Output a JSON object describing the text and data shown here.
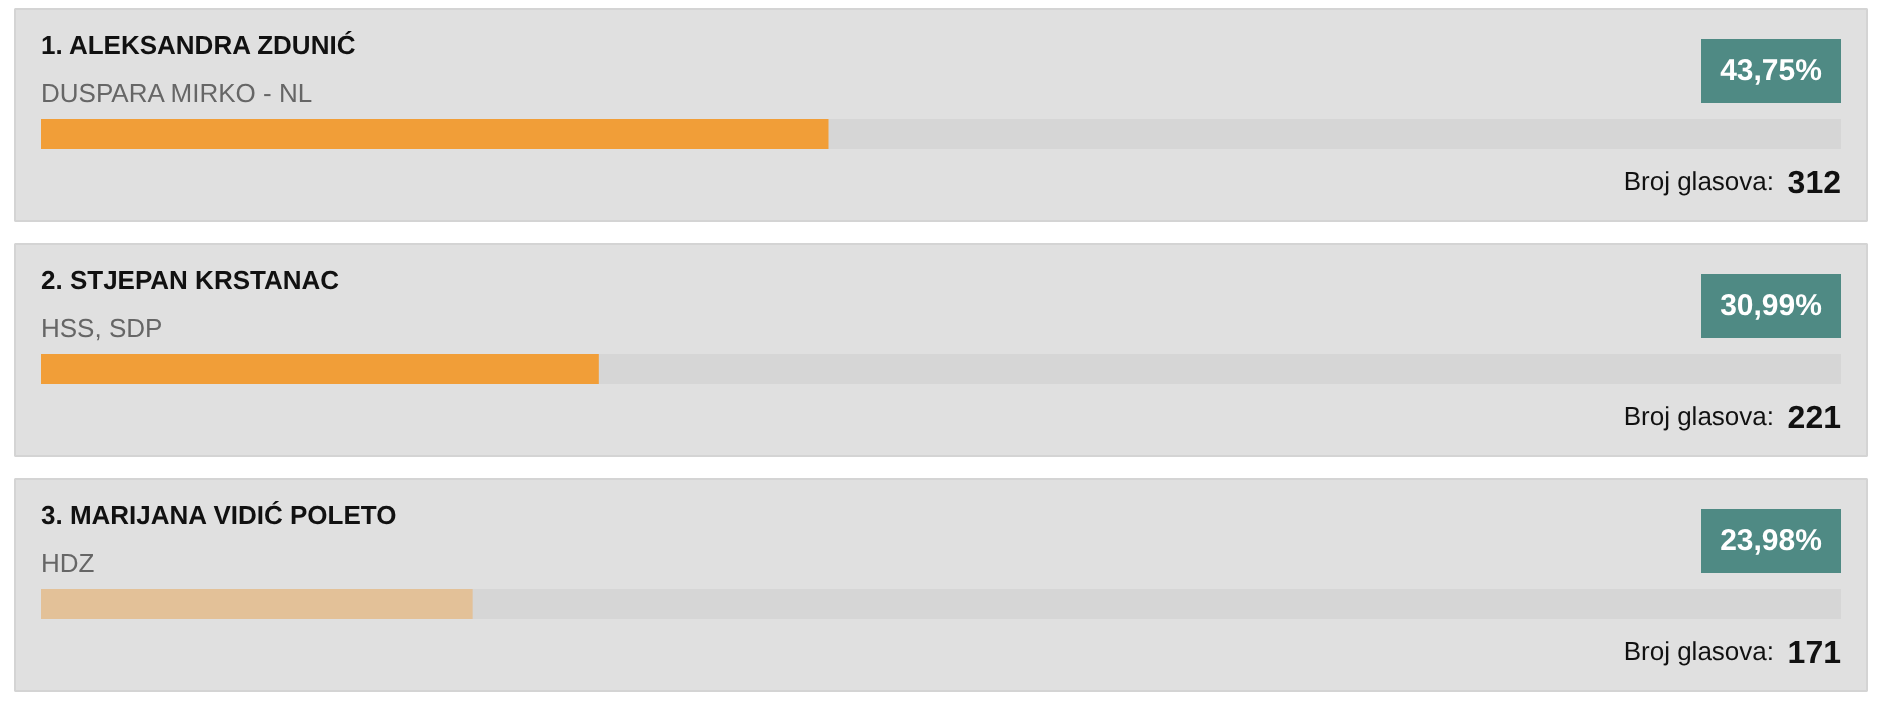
{
  "chart_data": {
    "type": "bar",
    "orientation": "horizontal",
    "categories": [
      "1. ALEKSANDRA ZDUNIĆ",
      "2. STJEPAN KRSTANAC",
      "3. MARIJANA VIDIĆ POLETO"
    ],
    "xlim": [
      0,
      100
    ],
    "tick_labels": "y",
    "series": [
      {
        "colors": [
          "#f19e38",
          "#f19e38",
          "#e3c198"
        ],
        "values": [
          43.75,
          30.99,
          23.98
        ],
        "value_labels": [
          "43,75%",
          "30,99%",
          "23,98%"
        ]
      }
    ],
    "annotations": [
      "DUSPARA MIRKO - NL",
      "Broj glasova:",
      "312",
      "HSS, SDP",
      "Broj glasova:",
      "221",
      "HDZ",
      "Broj glasova:",
      "171"
    ]
  }
}
